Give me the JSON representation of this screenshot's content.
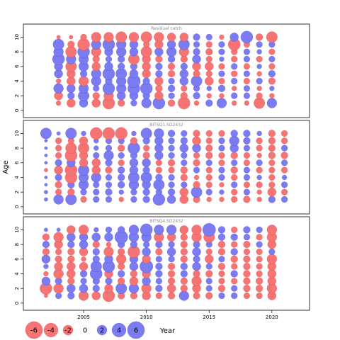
{
  "chart_data": {
    "type": "scatter",
    "subtype": "residual-bubble",
    "xlabel": "Year",
    "ylabel": "Age",
    "x_ticks": [
      "2005",
      "2010",
      "2015",
      "2020"
    ],
    "y_ticks": [
      "0",
      "2",
      "4",
      "6",
      "8",
      "10"
    ],
    "xlim": [
      2000.2,
      2023.0
    ],
    "ylim": [
      -0.4,
      11.2
    ],
    "size_scale_max": 6,
    "colors": {
      "positive": "#7c7cf2",
      "negative": "#f77474",
      "grid": "#000000",
      "frame": "#000000"
    },
    "legend": {
      "values": [
        -6,
        -4,
        -2,
        0,
        2,
        4,
        6
      ],
      "labels": [
        "-6",
        "-4",
        "-2",
        "0",
        "2",
        "4",
        "6"
      ],
      "title": "Year"
    },
    "panels": [
      {
        "title": "Residual catch",
        "years": [
          2003,
          2004,
          2005,
          2006,
          2007,
          2008,
          2009,
          2010,
          2011,
          2012,
          2013,
          2014,
          2015,
          2016,
          2017,
          2018,
          2019,
          2020
        ],
        "ages": [
          1,
          2,
          3,
          4,
          5,
          6,
          7,
          8,
          9,
          10
        ],
        "residuals": [
          [
            -0.5,
            -1.5,
            1.5,
            -1.5,
            -3.0,
            -1.0,
            0.8,
            2.0,
            3.0,
            -1.0,
            -3.0,
            -0.5,
            1.0,
            2.0,
            -0.5,
            -0.5,
            -2.5,
            2.0
          ],
          [
            -1.5,
            1.0,
            2.5,
            -1.0,
            -2.0,
            1.5,
            1.5,
            1.0,
            -1.5,
            0.8,
            -1.0,
            1.0,
            -0.5,
            -0.5,
            0.8,
            0.8,
            -0.8,
            -0.5
          ],
          [
            2.0,
            1.5,
            2.0,
            0.8,
            3.0,
            2.0,
            3.0,
            3.0,
            -1.0,
            1.0,
            -0.8,
            0.8,
            0.5,
            1.0,
            -0.5,
            0.8,
            -0.5,
            0.5
          ],
          [
            -0.5,
            -1.5,
            -2.0,
            2.0,
            1.0,
            2.0,
            3.5,
            1.0,
            -1.5,
            0.8,
            1.5,
            2.5,
            -1.5,
            -0.8,
            0.8,
            -0.8,
            0.8,
            -1.0
          ],
          [
            1.5,
            -1.5,
            1.0,
            2.0,
            3.0,
            2.5,
            1.5,
            -1.5,
            1.0,
            -1.0,
            1.5,
            -1.0,
            -0.8,
            0.8,
            -0.8,
            0.8,
            -0.5,
            1.0
          ],
          [
            1.5,
            -2.5,
            2.0,
            -1.5,
            1.5,
            1.0,
            1.0,
            -1.5,
            1.0,
            -1.0,
            1.0,
            -1.5,
            -1.5,
            -0.8,
            0.8,
            -0.8,
            0.5,
            -0.8
          ],
          [
            3.0,
            2.0,
            2.0,
            -1.0,
            0.8,
            1.0,
            -2.5,
            -1.5,
            -1.0,
            1.0,
            -1.0,
            1.5,
            -0.8,
            0.5,
            -0.8,
            0.8,
            -0.8,
            0.8
          ],
          [
            2.0,
            -2.5,
            3.0,
            -2.0,
            1.5,
            2.0,
            1.5,
            -2.5,
            1.5,
            2.0,
            -2.0,
            1.0,
            -1.0,
            0.8,
            -0.8,
            0.8,
            0.5,
            -0.8
          ],
          [
            2.5,
            -1.0,
            -3.0,
            2.0,
            3.0,
            2.0,
            1.5,
            -0.8,
            -1.5,
            1.5,
            2.5,
            0.8,
            -0.8,
            0.8,
            -3.0,
            -0.8,
            0.8,
            0.8
          ],
          [
            -0.3,
            -0.3,
            -0.8,
            -2.0,
            -2.0,
            -2.5,
            -2.0,
            -2.5,
            -2.0,
            -1.5,
            -1.5,
            1.0,
            0.8,
            -0.5,
            1.5,
            3.0,
            -1.0,
            -2.5
          ]
        ]
      },
      {
        "title": "BITSQ1.SD2432",
        "years": [
          2002,
          2003,
          2004,
          2005,
          2006,
          2007,
          2008,
          2009,
          2010,
          2011,
          2012,
          2013,
          2014,
          2015,
          2016,
          2017,
          2018,
          2019,
          2020,
          2021
        ],
        "ages": [
          1,
          2,
          3,
          4,
          5,
          6,
          7,
          8,
          9,
          10
        ],
        "residuals": [
          [
            0.3,
            2.0,
            2.5,
            -0.8,
            0.8,
            0.8,
            -0.5,
            0.8,
            1.0,
            3.0,
            1.5,
            -1.5,
            -1.0,
            -0.5,
            -0.5,
            -0.8,
            -1.0,
            -0.5,
            1.0,
            0.8
          ],
          [
            0.3,
            -0.8,
            -1.0,
            0.8,
            0.8,
            1.0,
            0.5,
            0.8,
            1.0,
            0.8,
            1.0,
            -1.5,
            2.5,
            0.8,
            0.5,
            -0.8,
            0.8,
            -0.5,
            -1.5,
            -0.8
          ],
          [
            0.2,
            -1.0,
            1.0,
            2.0,
            0.8,
            0.8,
            1.0,
            2.0,
            1.5,
            2.5,
            0.8,
            0.8,
            -1.0,
            -0.8,
            -0.5,
            0.8,
            -0.8,
            -0.8,
            -0.8,
            0.8
          ],
          [
            0.2,
            1.0,
            -3.0,
            2.0,
            2.0,
            0.8,
            1.0,
            2.5,
            2.5,
            1.0,
            0.8,
            -1.0,
            -0.5,
            -0.8,
            0.8,
            -0.8,
            0.8,
            0.5,
            -0.8,
            0.5
          ],
          [
            -0.3,
            -1.5,
            -3.0,
            2.5,
            -1.5,
            -1.0,
            1.0,
            1.5,
            1.0,
            -0.8,
            -0.8,
            -1.0,
            0.8,
            -0.8,
            0.8,
            -1.0,
            0.8,
            -0.8,
            -0.8,
            -0.8
          ],
          [
            0.2,
            1.0,
            1.5,
            -1.5,
            -1.5,
            1.0,
            -0.8,
            1.5,
            1.5,
            -0.8,
            -1.0,
            0.8,
            -1.0,
            0.8,
            -0.8,
            0.8,
            -0.8,
            0.8,
            -0.8,
            0.8
          ],
          [
            0.2,
            -0.8,
            -3.0,
            -1.5,
            0.8,
            2.0,
            0.8,
            1.0,
            -1.0,
            1.5,
            0.8,
            0.8,
            -0.8,
            -1.0,
            -0.8,
            -1.0,
            -0.8,
            -0.5,
            -1.0,
            -1.0
          ],
          [
            0.2,
            -0.8,
            -2.5,
            -2.5,
            0.5,
            0.8,
            -1.0,
            3.0,
            -0.8,
            1.5,
            0.8,
            1.5,
            1.5,
            -1.0,
            0.8,
            1.5,
            0.8,
            -0.8,
            -1.0,
            0.8
          ],
          [
            0.2,
            -0.8,
            -0.8,
            -1.5,
            0.5,
            0.8,
            0.8,
            -1.0,
            1.0,
            1.5,
            0.8,
            1.0,
            -1.5,
            -0.8,
            0.8,
            2.0,
            1.0,
            -0.8,
            -1.0,
            -0.8
          ],
          [
            2.5,
            0.3,
            2.5,
            0.5,
            -3.0,
            -3.0,
            -3.0,
            0.5,
            2.5,
            2.0,
            1.0,
            0.8,
            -1.0,
            -0.8,
            -0.8,
            1.0,
            1.0,
            0.5,
            -1.0,
            -0.8
          ]
        ]
      },
      {
        "title": "BITSQ4.SD2432",
        "years": [
          2002,
          2003,
          2004,
          2005,
          2006,
          2007,
          2008,
          2009,
          2010,
          2011,
          2012,
          2013,
          2014,
          2015,
          2016,
          2017,
          2018,
          2019,
          2020
        ],
        "ages": [
          1,
          2,
          3,
          4,
          5,
          6,
          7,
          8,
          9,
          10
        ],
        "residuals": [
          [
            -0.3,
            0.8,
            1.0,
            -2.0,
            -1.5,
            -3.0,
            -1.0,
            -1.0,
            -1.5,
            -0.8,
            -1.0,
            2.0,
            -1.0,
            -1.0,
            0.8,
            0.8,
            -0.8,
            -0.8,
            -1.5
          ],
          [
            -3.0,
            -2.0,
            1.5,
            1.5,
            1.0,
            -1.5,
            2.5,
            2.0,
            -2.0,
            1.0,
            -1.5,
            -1.0,
            -1.5,
            0.8,
            -1.0,
            0.8,
            -1.0,
            -1.0,
            -2.0
          ],
          [
            1.5,
            1.0,
            -1.0,
            0.8,
            1.0,
            1.0,
            -1.0,
            -1.5,
            1.5,
            0.8,
            -1.0,
            -1.0,
            -2.0,
            0.8,
            -0.8,
            -0.8,
            -1.0,
            -1.0,
            -1.5
          ],
          [
            -0.5,
            -2.0,
            -1.5,
            1.0,
            3.0,
            -1.5,
            1.0,
            -1.0,
            -1.5,
            1.0,
            -1.0,
            1.0,
            -1.0,
            -1.0,
            -0.8,
            1.0,
            -1.0,
            -0.8,
            -1.5
          ],
          [
            0.5,
            -1.5,
            -1.5,
            -1.5,
            2.5,
            3.0,
            -1.0,
            1.5,
            3.5,
            1.0,
            -1.0,
            1.0,
            1.5,
            0.8,
            -1.0,
            -0.8,
            -1.0,
            -0.8,
            -1.5
          ],
          [
            1.5,
            -1.0,
            -1.0,
            -0.5,
            1.0,
            1.5,
            -2.0,
            1.5,
            -1.5,
            0.8,
            0.8,
            -1.0,
            1.0,
            -1.5,
            0.8,
            -1.0,
            -1.0,
            -0.8,
            -2.0
          ],
          [
            -1.0,
            -0.8,
            -1.0,
            -1.5,
            1.0,
            -2.0,
            -1.0,
            -3.0,
            1.5,
            -1.0,
            1.5,
            -1.0,
            1.5,
            -0.8,
            -1.0,
            1.0,
            -0.8,
            -0.8,
            0.8
          ],
          [
            1.0,
            -1.5,
            1.0,
            1.5,
            -1.0,
            -0.5,
            1.0,
            1.0,
            0.8,
            1.0,
            0.8,
            -1.0,
            1.0,
            0.8,
            -1.0,
            -0.8,
            -1.0,
            0.8,
            -1.5
          ],
          [
            -1.0,
            -2.0,
            1.5,
            1.5,
            1.5,
            1.5,
            3.5,
            2.0,
            2.0,
            -2.0,
            -1.5,
            -1.0,
            -2.0,
            -2.5,
            1.0,
            1.0,
            0.8,
            -0.8,
            -2.0
          ],
          [
            0.3,
            0.3,
            -1.5,
            -2.0,
            0.5,
            0.8,
            1.0,
            2.0,
            3.0,
            2.0,
            2.0,
            -1.5,
            -2.0,
            3.5,
            1.0,
            -0.8,
            1.0,
            0.8,
            -2.0
          ]
        ]
      }
    ]
  }
}
